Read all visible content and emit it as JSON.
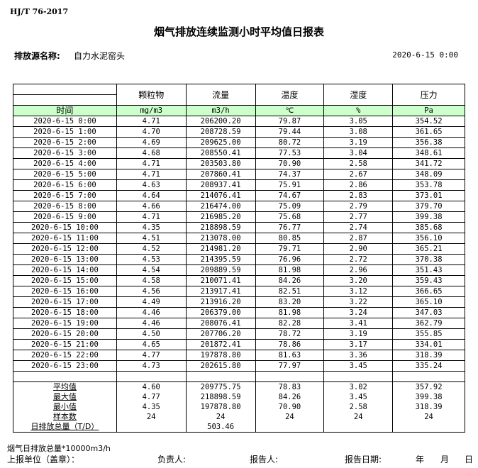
{
  "standard": "HJ/T  76-2017",
  "title": "烟气排放连续监测小时平均值日报表",
  "source": {
    "label": "排放源名称:",
    "value": "自力水泥窑头"
  },
  "report_date": "2020-6-15 0:00",
  "table": {
    "columns": [
      "颗粒物",
      "流量",
      "温度",
      "湿度",
      "压力"
    ],
    "time_header": "时间",
    "units": [
      "mg/m3",
      "m3/h",
      "℃",
      "%",
      "Pa"
    ],
    "header_color": "#ccffcc",
    "rows": [
      [
        "2020-6-15 0:00",
        "4.71",
        "206200.20",
        "79.87",
        "3.05",
        "354.52"
      ],
      [
        "2020-6-15 1:00",
        "4.70",
        "208728.59",
        "79.44",
        "3.08",
        "361.65"
      ],
      [
        "2020-6-15 2:00",
        "4.69",
        "209625.00",
        "80.72",
        "3.19",
        "356.38"
      ],
      [
        "2020-6-15 3:00",
        "4.68",
        "208550.41",
        "77.53",
        "3.04",
        "348.61"
      ],
      [
        "2020-6-15 4:00",
        "4.71",
        "203503.80",
        "70.90",
        "2.58",
        "341.72"
      ],
      [
        "2020-6-15 5:00",
        "4.71",
        "207860.41",
        "74.37",
        "2.67",
        "348.09"
      ],
      [
        "2020-6-15 6:00",
        "4.63",
        "208937.41",
        "75.91",
        "2.86",
        "353.78"
      ],
      [
        "2020-6-15 7:00",
        "4.64",
        "214076.41",
        "74.67",
        "2.83",
        "373.01"
      ],
      [
        "2020-6-15 8:00",
        "4.66",
        "216474.00",
        "75.09",
        "2.79",
        "379.70"
      ],
      [
        "2020-6-15 9:00",
        "4.71",
        "216985.20",
        "75.68",
        "2.77",
        "399.38"
      ],
      [
        "2020-6-15 10:00",
        "4.35",
        "218898.59",
        "76.77",
        "2.74",
        "385.68"
      ],
      [
        "2020-6-15 11:00",
        "4.51",
        "213078.00",
        "80.85",
        "2.87",
        "356.10"
      ],
      [
        "2020-6-15 12:00",
        "4.52",
        "214981.20",
        "79.71",
        "2.90",
        "365.21"
      ],
      [
        "2020-6-15 13:00",
        "4.53",
        "214395.59",
        "76.96",
        "2.72",
        "370.38"
      ],
      [
        "2020-6-15 14:00",
        "4.54",
        "209889.59",
        "81.98",
        "2.96",
        "351.43"
      ],
      [
        "2020-6-15 15:00",
        "4.58",
        "210071.41",
        "84.26",
        "3.20",
        "359.43"
      ],
      [
        "2020-6-15 16:00",
        "4.56",
        "213917.41",
        "82.51",
        "3.12",
        "366.65"
      ],
      [
        "2020-6-15 17:00",
        "4.49",
        "213916.20",
        "83.20",
        "3.22",
        "365.10"
      ],
      [
        "2020-6-15 18:00",
        "4.46",
        "206379.00",
        "81.98",
        "3.24",
        "347.03"
      ],
      [
        "2020-6-15 19:00",
        "4.46",
        "208076.41",
        "82.28",
        "3.41",
        "362.79"
      ],
      [
        "2020-6-15 20:00",
        "4.50",
        "207706.20",
        "78.72",
        "3.19",
        "355.85"
      ],
      [
        "2020-6-15 21:00",
        "4.65",
        "201872.41",
        "78.86",
        "3.17",
        "334.01"
      ],
      [
        "2020-6-15 22:00",
        "4.77",
        "197878.80",
        "81.63",
        "3.36",
        "318.39"
      ],
      [
        "2020-6-15 23:00",
        "4.73",
        "202615.80",
        "77.97",
        "3.45",
        "335.24"
      ]
    ],
    "summary": [
      [
        "平均值",
        "4.60",
        "209775.75",
        "78.83",
        "3.02",
        "357.92"
      ],
      [
        "最大值",
        "4.77",
        "218898.59",
        "84.26",
        "3.45",
        "399.38"
      ],
      [
        "最小值",
        "4.35",
        "197878.80",
        "70.90",
        "2.58",
        "318.39"
      ],
      [
        "样本数",
        "24",
        "24",
        "24",
        "24",
        "24"
      ],
      [
        "日排放总量（T/D）",
        "",
        "503.46",
        "",
        "",
        ""
      ]
    ]
  },
  "footer": {
    "note": "烟气日排放总量*10000m3/h",
    "unit_label": "上报单位（盖章）：",
    "responsible_label": "负责人:",
    "reporter_label": "报告人:",
    "report_date_label": "报告日期:",
    "year": "年",
    "month": "月",
    "day": "日"
  }
}
